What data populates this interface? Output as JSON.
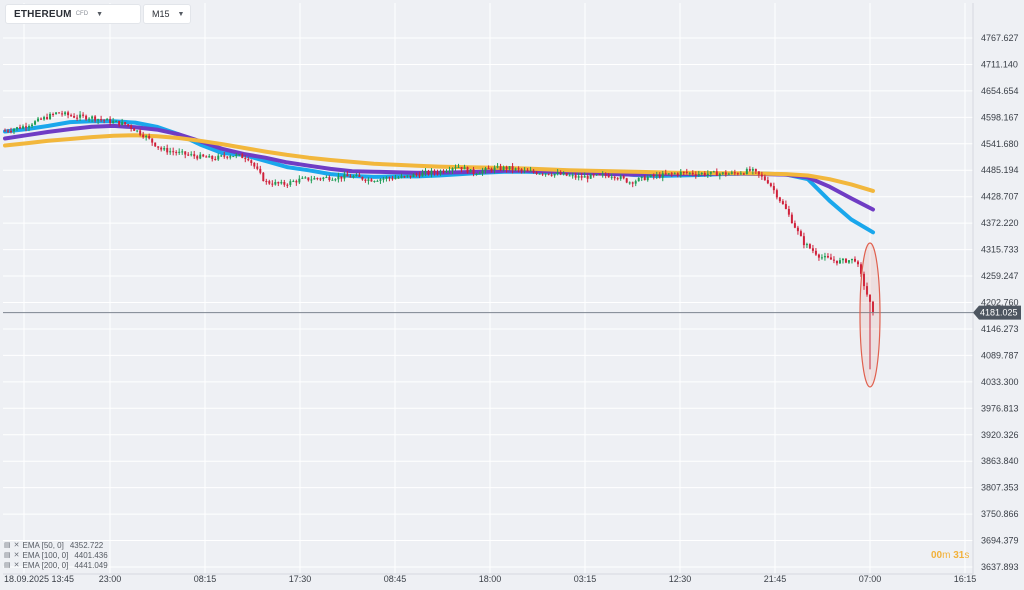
{
  "toolbar": {
    "symbol": "ETHEREUM",
    "badge": "CFD",
    "timeframe": "M15"
  },
  "chart_data": {
    "type": "candlestick",
    "y_axis": {
      "min": 3637.893,
      "max": 4767.627,
      "ticks": [
        "4767.627",
        "4711.140",
        "4654.654",
        "4598.167",
        "4541.680",
        "4485.194",
        "4428.707",
        "4372.220",
        "4315.733",
        "4259.247",
        "4202.760",
        "4146.273",
        "4089.787",
        "4033.300",
        "3976.813",
        "3920.326",
        "3863.840",
        "3807.353",
        "3750.866",
        "3694.379",
        "3637.893"
      ]
    },
    "x_axis": {
      "ticks": [
        "18.09.2025  13:45",
        "23:00",
        "08:15",
        "17:30",
        "08:45",
        "18:00",
        "03:15",
        "12:30",
        "21:45",
        "07:00",
        "16:15"
      ]
    },
    "current_price": "4181.025",
    "current_price_value": 4181.025,
    "grid": true,
    "series": [
      {
        "name": "EMA [50, 0] 4352.722",
        "color": "#1aa7ec",
        "values": [
          4568,
          4573,
          4580,
          4588,
          4590,
          4590,
          4587,
          4578,
          4562,
          4540,
          4522,
          4518,
          4505,
          4492,
          4485,
          4477,
          4473,
          4471,
          4472,
          4472,
          4474,
          4477,
          4480,
          4482,
          4482,
          4481,
          4480,
          4479,
          4479,
          4475,
          4473,
          4474,
          4475,
          4477,
          4478,
          4478,
          4476,
          4466,
          4420,
          4380,
          4352.722
        ]
      },
      {
        "name": "EMA [100, 0] 4401.436",
        "color": "#6f3cc4",
        "values": [
          4553,
          4560,
          4567,
          4573,
          4578,
          4580,
          4577,
          4572,
          4562,
          4547,
          4531,
          4520,
          4512,
          4502,
          4495,
          4488,
          4483,
          4482,
          4481,
          4480,
          4480,
          4481,
          4482,
          4484,
          4484,
          4483,
          4481,
          4479,
          4477,
          4476,
          4477,
          4477,
          4477,
          4478,
          4478,
          4477,
          4476,
          4470,
          4450,
          4425,
          4401.436
        ]
      },
      {
        "name": "EMA [200, 0] 4441.049",
        "color": "#f2b73c",
        "values": [
          4538,
          4543,
          4548,
          4552,
          4556,
          4559,
          4560,
          4558,
          4554,
          4548,
          4541,
          4533,
          4525,
          4518,
          4512,
          4507,
          4503,
          4499,
          4497,
          4495,
          4493,
          4492,
          4491,
          4490,
          4489,
          4487,
          4485,
          4484,
          4483,
          4482,
          4481,
          4480,
          4480,
          4479,
          4479,
          4478,
          4477,
          4474,
          4466,
          4455,
          4441.049
        ]
      }
    ],
    "price_path": [
      4570,
      4578,
      4592,
      4608,
      4600,
      4598,
      4590,
      4583,
      4560,
      4530,
      4522,
      4515,
      4510,
      4518,
      4512,
      4460,
      4455,
      4465,
      4468,
      4470,
      4472,
      4465,
      4468,
      4470,
      4478,
      4482,
      4495,
      4480,
      4488,
      4490,
      4482,
      4480,
      4476,
      4470,
      4472,
      4475,
      4460,
      4470,
      4475,
      4480,
      4478,
      4478,
      4478,
      4485,
      4460,
      4400,
      4330,
      4300,
      4290,
      4295,
      4181
    ]
  },
  "legend": {
    "entries": [
      {
        "label": "EMA [50, 0]",
        "value": "4352.722"
      },
      {
        "label": "EMA [100, 0]",
        "value": "4401.436"
      },
      {
        "label": "EMA [200, 0]",
        "value": "4441.049"
      }
    ]
  },
  "countdown": {
    "minutes": "00",
    "min_unit": "m",
    "seconds": "31",
    "sec_unit": "s"
  },
  "colors": {
    "background": "#eef0f4",
    "grid": "#ffffff",
    "up": "#1f9d55",
    "down": "#d0213b",
    "price_line": "#7d8590",
    "price_tag": "#4d5560",
    "highlight": "#e0604e"
  }
}
